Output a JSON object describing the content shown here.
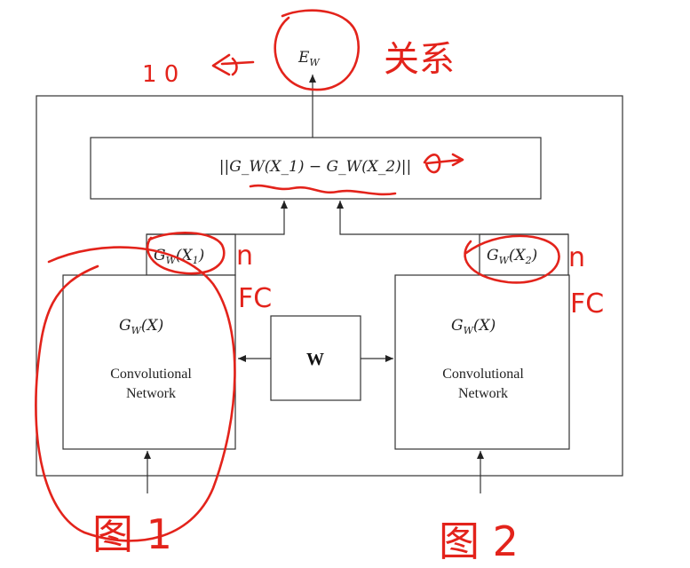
{
  "diagram": {
    "energy_label": {
      "base": "E",
      "sub": "W"
    },
    "distance_label": "||G_W(X_1) − G_W(X_2)||",
    "left_output_label": {
      "base": "G",
      "sub": "W",
      "arg": "(X",
      "argsub": "1",
      "close": ")"
    },
    "right_output_label": {
      "base": "G",
      "sub": "W",
      "arg": "(X",
      "argsub": "2",
      "close": ")"
    },
    "left_net": {
      "func": {
        "base": "G",
        "sub": "W",
        "arg": "(X)"
      },
      "line1": "Convolutional",
      "line2": "Network"
    },
    "right_net": {
      "func": {
        "base": "G",
        "sub": "W",
        "arg": "(X)"
      },
      "line1": "Convolutional",
      "line2": "Network"
    },
    "shared_weights_label": "W"
  },
  "annotations": {
    "top_left_marks": "1 0",
    "relation_note": "关系",
    "left_fc_n": "n",
    "left_fc": "FC",
    "right_fc_n": "n",
    "right_fc": "FC",
    "image1_note": "图 1",
    "image2_note": "图 2"
  },
  "colors": {
    "ink": "#222222",
    "annotation": "#e3231b"
  }
}
